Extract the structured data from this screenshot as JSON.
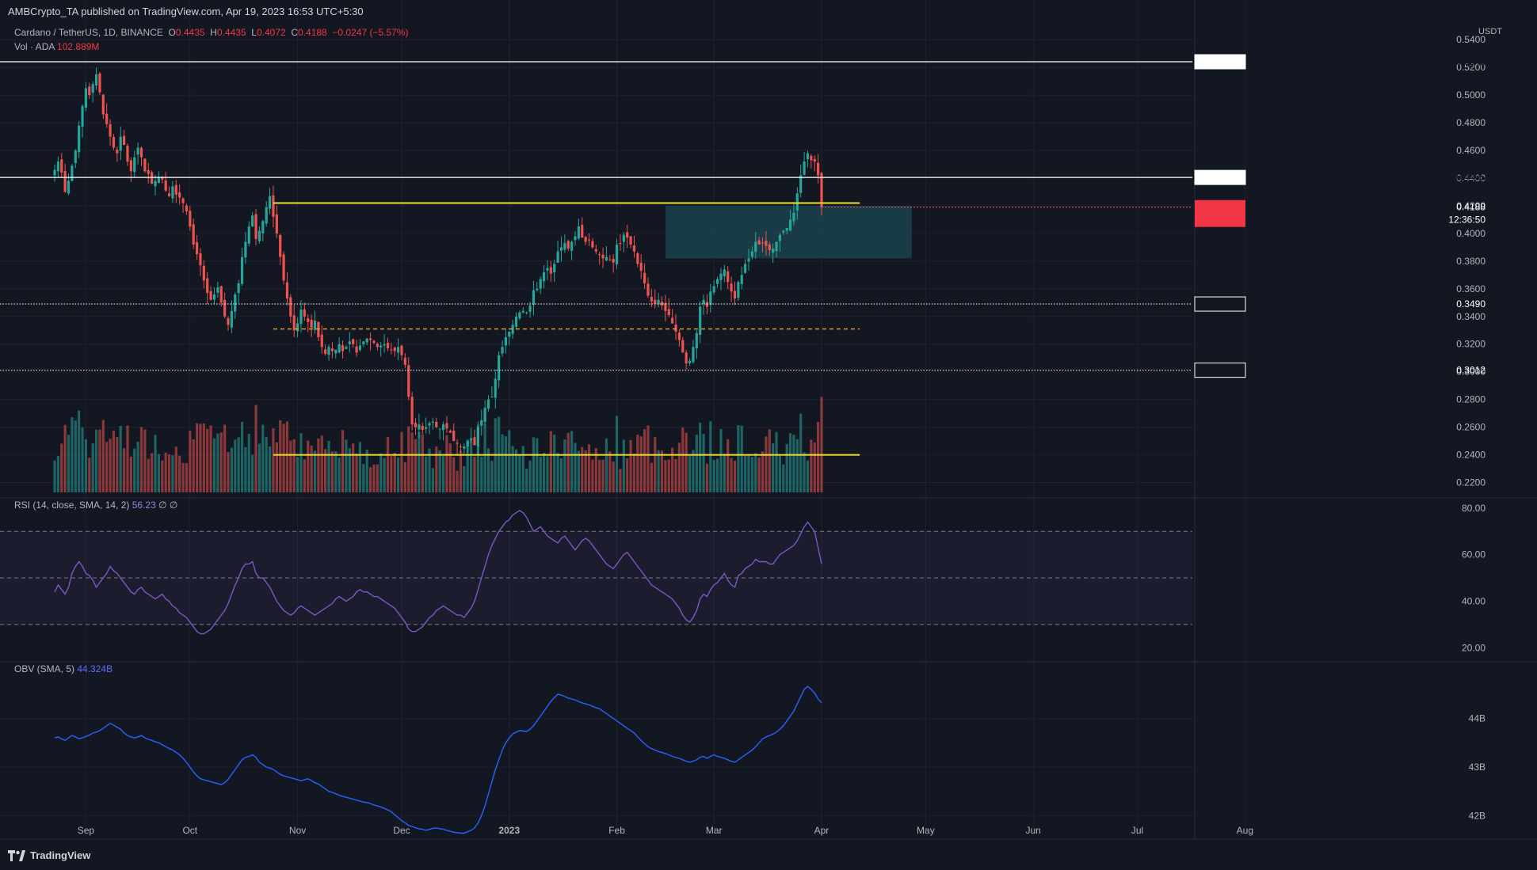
{
  "header": {
    "publish_line": "AMBCrypto_TA published on TradingView.com, Apr 19, 2023 16:53 UTC+5:30",
    "symbol_title": "Cardano / TetherUS, 1D, BINANCE",
    "ohlc": {
      "o_label": "O",
      "o": "0.4435",
      "h_label": "H",
      "h": "0.4435",
      "l_label": "L",
      "l": "0.4072",
      "c_label": "C",
      "c": "0.4188",
      "change": "−0.0247 (−5.57%)"
    },
    "volume_legend": {
      "label": "Vol · ADA",
      "value": "102.889M"
    },
    "rsi_legend": {
      "label": "RSI (14, close, SMA, 14, 2)",
      "value": "56.23",
      "extra": "∅ ∅"
    },
    "obv_legend": {
      "label": "OBV (SMA, 5)",
      "value": "44.324B"
    },
    "currency": "USDT"
  },
  "footer": {
    "brand": "TradingView"
  },
  "colors": {
    "background": "#131722",
    "up": "#26a69a",
    "down": "#ef5350",
    "level_line": "#ffffff",
    "yellow_line": "#f0e130",
    "orange_dash": "#f5a623",
    "zone": "#1e5a64",
    "rsi_line": "#7e57c2",
    "obv_line": "#2962ff"
  },
  "chart_data": [
    {
      "type": "candlestick",
      "title": "Cardano / TetherUS, 1D, BINANCE",
      "x_tick_labels": [
        "Sep",
        "Oct",
        "Nov",
        "Dec",
        "2023",
        "Feb",
        "Mar",
        "Apr",
        "May",
        "Jun",
        "Jul",
        "Aug"
      ],
      "y_tick_labels": [
        "0.5400",
        "0.5200",
        "0.5000",
        "0.4800",
        "0.4600",
        "0.4400",
        "0.4200",
        "0.4000",
        "0.3800",
        "0.3600",
        "0.3400",
        "0.3200",
        "0.3000",
        "0.2800",
        "0.2600",
        "0.2400",
        "0.2200"
      ],
      "ylim": [
        0.21,
        0.547
      ],
      "last_price": {
        "value": "0.4188",
        "countdown": "12:36:50"
      },
      "horizontal_levels": [
        {
          "value": 0.5241,
          "label": "0.5241",
          "style": "solid"
        },
        {
          "value": 0.4405,
          "label": "0.4405",
          "style": "solid"
        },
        {
          "value": 0.349,
          "label": "0.3490",
          "style": "dotted"
        },
        {
          "value": 0.3012,
          "label": "0.3012",
          "style": "dotted"
        }
      ],
      "drawn_lines": [
        {
          "style": "yellow",
          "from": "2022-10-25",
          "to": "2023-04-12",
          "value": 0.422
        },
        {
          "style": "orange-dashed",
          "from": "2022-10-25",
          "to": "2023-04-12",
          "value": 0.331
        },
        {
          "style": "yellow",
          "from": "2022-10-25",
          "to": "2023-04-12",
          "value": 0.24
        }
      ],
      "zone": {
        "from": "2023-02-15",
        "to": "2023-04-27",
        "y_low": 0.382,
        "y_high": 0.42
      },
      "closes": [
        [
          0.446,
          0.452,
          0.444,
          0.43,
          0.438,
          0.449,
          0.46,
          0.478,
          0.492,
          0.505,
          0.5,
          0.508,
          0.515,
          0.502,
          0.486,
          0.479,
          0.47,
          0.462,
          0.458,
          0.47,
          0.464,
          0.452,
          0.445,
          0.455,
          0.462,
          0.455,
          0.445,
          0.443,
          0.436,
          0.438
        ],
        [
          0.441,
          0.439,
          0.431,
          0.427,
          0.434,
          0.428,
          0.426,
          0.422,
          0.416,
          0.405,
          0.392,
          0.385,
          0.377,
          0.366,
          0.357,
          0.352,
          0.356,
          0.361,
          0.35,
          0.34,
          0.334,
          0.344,
          0.356,
          0.364,
          0.383,
          0.394,
          0.405,
          0.413,
          0.396,
          0.402
        ],
        [
          0.409,
          0.419,
          0.427,
          0.412,
          0.4,
          0.383,
          0.366,
          0.353,
          0.34,
          0.33,
          0.335,
          0.345,
          0.34,
          0.336,
          0.332,
          0.337,
          0.325,
          0.318,
          0.313,
          0.318,
          0.315,
          0.316,
          0.32,
          0.315,
          0.318,
          0.322,
          0.32,
          0.314,
          0.319,
          0.322
        ],
        [
          0.324,
          0.323,
          0.321,
          0.318,
          0.319,
          0.32,
          0.317,
          0.316,
          0.315,
          0.318,
          0.312,
          0.305,
          0.282,
          0.262,
          0.26,
          0.262,
          0.258,
          0.26,
          0.263,
          0.264,
          0.26,
          0.259,
          0.262,
          0.259,
          0.256,
          0.25,
          0.248,
          0.246,
          0.246,
          0.25
        ],
        [
          0.252,
          0.247,
          0.26,
          0.265,
          0.274,
          0.28,
          0.282,
          0.295,
          0.312,
          0.318,
          0.325,
          0.329,
          0.334,
          0.34,
          0.343,
          0.344,
          0.343,
          0.348,
          0.359,
          0.36,
          0.367,
          0.372,
          0.375,
          0.371,
          0.378,
          0.387,
          0.39,
          0.393,
          0.389,
          0.394
        ],
        [
          0.398,
          0.405,
          0.397,
          0.394,
          0.395,
          0.39,
          0.387,
          0.385,
          0.382,
          0.383,
          0.381,
          0.379,
          0.392,
          0.393,
          0.399,
          0.397,
          0.392,
          0.387,
          0.378,
          0.373,
          0.364,
          0.355,
          0.351,
          0.349,
          0.352,
          0.348,
          0.344,
          0.341,
          0.335,
          0.329
        ],
        [
          0.323,
          0.314,
          0.306,
          0.308,
          0.318,
          0.328,
          0.347,
          0.352,
          0.347,
          0.358,
          0.362,
          0.367,
          0.371,
          0.374,
          0.365,
          0.358,
          0.353,
          0.365,
          0.37,
          0.378,
          0.382,
          0.387,
          0.394,
          0.392,
          0.393,
          0.391,
          0.388,
          0.389,
          0.394,
          0.399
        ],
        [
          0.402,
          0.404,
          0.41,
          0.415,
          0.429,
          0.442,
          0.452,
          0.458,
          0.453,
          0.452,
          0.442,
          0.419
        ]
      ]
    },
    {
      "type": "line",
      "title": "RSI (14, close, SMA, 14, 2)",
      "y_tick_labels": [
        "80.00",
        "60.00",
        "40.00",
        "20.00"
      ],
      "ylim": [
        15,
        83
      ],
      "bands": [
        70,
        50,
        30
      ],
      "last_value": 56.23,
      "values": [
        [
          44,
          47,
          45,
          43,
          46,
          52,
          55,
          57,
          55,
          52,
          51,
          49,
          46,
          48,
          50,
          52,
          55,
          53,
          52,
          50,
          48,
          46,
          44,
          43,
          45,
          46,
          44,
          43,
          42,
          41
        ],
        [
          42,
          43,
          41,
          40,
          38,
          37,
          35,
          34,
          33,
          31,
          29,
          27,
          26,
          26,
          27,
          28,
          30,
          32,
          34,
          36,
          39,
          43,
          47,
          50,
          54,
          56,
          56,
          57,
          52,
          50
        ],
        [
          50,
          48,
          46,
          43,
          40,
          38,
          36,
          35,
          34,
          35,
          37,
          38,
          37,
          36,
          35,
          34,
          35,
          36,
          37,
          38,
          39,
          41,
          42,
          41,
          40,
          41,
          42,
          44,
          45,
          44
        ],
        [
          44,
          43,
          42,
          42,
          41,
          40,
          39,
          38,
          37,
          35,
          33,
          31,
          28,
          27,
          27,
          28,
          29,
          31,
          33,
          34,
          36,
          37,
          38,
          37,
          36,
          35,
          34,
          34,
          33,
          35
        ],
        [
          37,
          40,
          45,
          50,
          55,
          60,
          64,
          67,
          70,
          72,
          74,
          75,
          77,
          78,
          79,
          78,
          76,
          73,
          70,
          71,
          72,
          70,
          68,
          67,
          66,
          65,
          67,
          68,
          66,
          64
        ],
        [
          62,
          64,
          66,
          67,
          66,
          64,
          62,
          60,
          58,
          56,
          55,
          54,
          56,
          58,
          60,
          61,
          59,
          57,
          55,
          53,
          51,
          49,
          47,
          46,
          45,
          44,
          43,
          42,
          41,
          39
        ],
        [
          37,
          34,
          32,
          31,
          33,
          36,
          41,
          43,
          42,
          45,
          47,
          48,
          50,
          52,
          49,
          47,
          46,
          51,
          52,
          54,
          55,
          56,
          58,
          57,
          57,
          57,
          56,
          56,
          58,
          60
        ],
        [
          61,
          62,
          63,
          64,
          66,
          69,
          72,
          74,
          72,
          70,
          63,
          56
        ]
      ]
    },
    {
      "type": "line",
      "title": "OBV (SMA, 5)",
      "y_tick_labels": [
        "44B",
        "43B",
        "42B"
      ],
      "ylim": [
        41.6,
        45.1
      ],
      "last_value": 44.324,
      "values": [
        [
          43.6,
          43.62,
          43.58,
          43.55,
          43.6,
          43.65,
          43.62,
          43.58,
          43.6,
          43.63,
          43.66,
          43.7,
          43.72,
          43.75,
          43.8,
          43.85,
          43.9,
          43.86,
          43.82,
          43.78,
          43.7,
          43.65,
          43.62,
          43.6,
          43.62,
          43.65,
          43.6,
          43.57,
          43.55,
          43.52
        ],
        [
          43.5,
          43.46,
          43.42,
          43.38,
          43.35,
          43.3,
          43.25,
          43.18,
          43.1,
          43.0,
          42.9,
          42.82,
          42.76,
          42.74,
          42.72,
          42.7,
          42.68,
          42.66,
          42.64,
          42.68,
          42.75,
          42.85,
          42.95,
          43.05,
          43.15,
          43.2,
          43.22,
          43.25,
          43.2,
          43.1
        ],
        [
          43.05,
          43.0,
          42.98,
          42.95,
          42.9,
          42.85,
          42.82,
          42.8,
          42.78,
          42.76,
          42.74,
          42.72,
          42.74,
          42.76,
          42.72,
          42.68,
          42.65,
          42.6,
          42.55,
          42.5,
          42.48,
          42.45,
          42.42,
          42.4,
          42.38,
          42.36,
          42.34,
          42.32,
          42.3,
          42.28
        ],
        [
          42.27,
          42.25,
          42.22,
          42.2,
          42.18,
          42.15,
          42.12,
          42.08,
          42.02,
          41.96,
          41.9,
          41.85,
          41.8,
          41.78,
          41.75,
          41.73,
          41.72,
          41.7,
          41.72,
          41.74,
          41.75,
          41.73,
          41.72,
          41.7,
          41.68,
          41.66,
          41.65,
          41.64,
          41.64,
          41.67
        ],
        [
          41.7,
          41.75,
          41.85,
          42.0,
          42.2,
          42.45,
          42.7,
          42.95,
          43.15,
          43.35,
          43.5,
          43.6,
          43.68,
          43.72,
          43.75,
          43.74,
          43.73,
          43.78,
          43.85,
          43.95,
          44.05,
          44.15,
          44.25,
          44.35,
          44.43,
          44.5,
          44.48,
          44.45,
          44.42,
          44.4
        ],
        [
          44.38,
          44.35,
          44.32,
          44.3,
          44.28,
          44.25,
          44.22,
          44.2,
          44.15,
          44.1,
          44.05,
          44.0,
          43.95,
          43.9,
          43.85,
          43.8,
          43.75,
          43.7,
          43.62,
          43.55,
          43.48,
          43.42,
          43.38,
          43.35,
          43.32,
          43.3,
          43.28,
          43.25,
          43.22,
          43.2
        ],
        [
          43.18,
          43.15,
          43.12,
          43.1,
          43.12,
          43.15,
          43.2,
          43.22,
          43.18,
          43.22,
          43.25,
          43.22,
          43.2,
          43.18,
          43.15,
          43.12,
          43.1,
          43.15,
          43.2,
          43.25,
          43.3,
          43.35,
          43.42,
          43.5,
          43.58,
          43.62,
          43.65,
          43.68,
          43.72,
          43.78
        ],
        [
          43.85,
          43.95,
          44.05,
          44.15,
          44.3,
          44.45,
          44.6,
          44.66,
          44.6,
          44.52,
          44.4,
          44.324
        ]
      ]
    }
  ]
}
